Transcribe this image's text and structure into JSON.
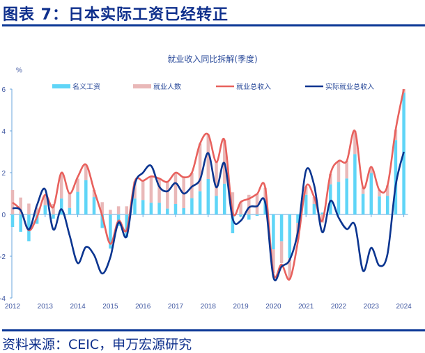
{
  "header": {
    "title": "图表 7：日本实际工资已经转正"
  },
  "footer": {
    "source": "资料来源：CEIC，申万宏源研究"
  },
  "chart_data": {
    "type": "bar+line",
    "title": "就业收入同比拆解(季度)",
    "ylabel": "%",
    "xlabel": "",
    "ylim": [
      -4,
      6
    ],
    "yticks": [
      "-4",
      "-2",
      "0",
      "2",
      "4",
      "6"
    ],
    "xtick_labels": [
      "2012",
      "2013",
      "2014",
      "2015",
      "2016",
      "2017",
      "2018",
      "2019",
      "2020",
      "2021",
      "2022",
      "2023",
      "2024"
    ],
    "frequency": "quarterly, 2012Q1–2024Q1",
    "legend_position": "top",
    "grid": false,
    "colors": {
      "wage": "#5fd5f7",
      "employment": "#e9b8b8",
      "total": "#e8615d",
      "real": "#0b3590"
    },
    "series": [
      {
        "name": "名义工资",
        "kind": "stacked-bar",
        "values": [
          -0.6,
          -0.83,
          -1.28,
          -0.45,
          0.44,
          -0.2,
          0.76,
          0.31,
          1.08,
          1.64,
          0.83,
          -0.65,
          -1.63,
          -0.55,
          -1.1,
          0.76,
          0.69,
          0.56,
          0.56,
          0.28,
          0.5,
          0.3,
          0.78,
          1.11,
          1.7,
          0.89,
          1.47,
          -0.9,
          -0.1,
          -0.25,
          -0.07,
          0.67,
          -1.67,
          -1.28,
          -2.1,
          -0.4,
          0.94,
          0.5,
          0.09,
          1.44,
          1.56,
          1.72,
          2.89,
          0.98,
          1.98,
          0.86,
          0.89,
          3.56,
          5.83
        ]
      },
      {
        "name": "就业人数",
        "kind": "stacked-bar",
        "values": [
          1.17,
          0.81,
          0.52,
          0.33,
          0.5,
          0.5,
          1.24,
          0.69,
          0.64,
          0.75,
          0.34,
          0.59,
          0.22,
          0.39,
          0.39,
          0.82,
          0.92,
          1.26,
          1.16,
          1.28,
          1.5,
          1.48,
          1.22,
          2.28,
          2.13,
          1.61,
          2.09,
          1.06,
          0.59,
          0.94,
          0.98,
          0.61,
          -1.13,
          -1.05,
          -1.0,
          -0.8,
          0.39,
          0.33,
          -0.39,
          0.5,
          1.0,
          0.84,
          1.11,
          0.3,
          0.3,
          0.31,
          0.5,
          0.5,
          0.17
        ]
      },
      {
        "name": "就业总收入",
        "kind": "line",
        "values": [
          0.57,
          0.2,
          -0.76,
          -0.12,
          0.94,
          0.35,
          2.0,
          1.0,
          1.8,
          2.39,
          1.17,
          -0.06,
          -1.41,
          -0.3,
          -0.75,
          1.58,
          1.61,
          1.82,
          1.72,
          1.56,
          2.0,
          1.78,
          2.0,
          3.39,
          3.83,
          2.5,
          3.56,
          0.1,
          0.6,
          0.75,
          0.98,
          1.28,
          -2.83,
          -2.4,
          -3.1,
          -1.3,
          1.33,
          0.83,
          -0.3,
          1.94,
          2.56,
          2.56,
          4.0,
          1.28,
          2.28,
          1.17,
          1.39,
          4.06,
          6.0
        ]
      },
      {
        "name": "实际就业总收入",
        "kind": "line",
        "values": [
          0.3,
          0.2,
          -0.72,
          0.45,
          1.2,
          -0.72,
          0.25,
          -1.0,
          -2.33,
          -1.56,
          -1.94,
          -2.83,
          -2.05,
          -0.39,
          -1.05,
          1.44,
          2.0,
          2.33,
          1.33,
          1.11,
          1.5,
          1.0,
          1.33,
          1.67,
          2.94,
          1.3,
          2.45,
          -0.2,
          -0.3,
          0.33,
          0.39,
          0.56,
          -3.0,
          -2.5,
          -2.17,
          -0.83,
          2.1,
          1.4,
          -0.85,
          0.65,
          -0.15,
          -0.7,
          -0.5,
          -2.7,
          -1.6,
          -2.45,
          -1.89,
          1.39,
          3.0
        ]
      }
    ]
  }
}
